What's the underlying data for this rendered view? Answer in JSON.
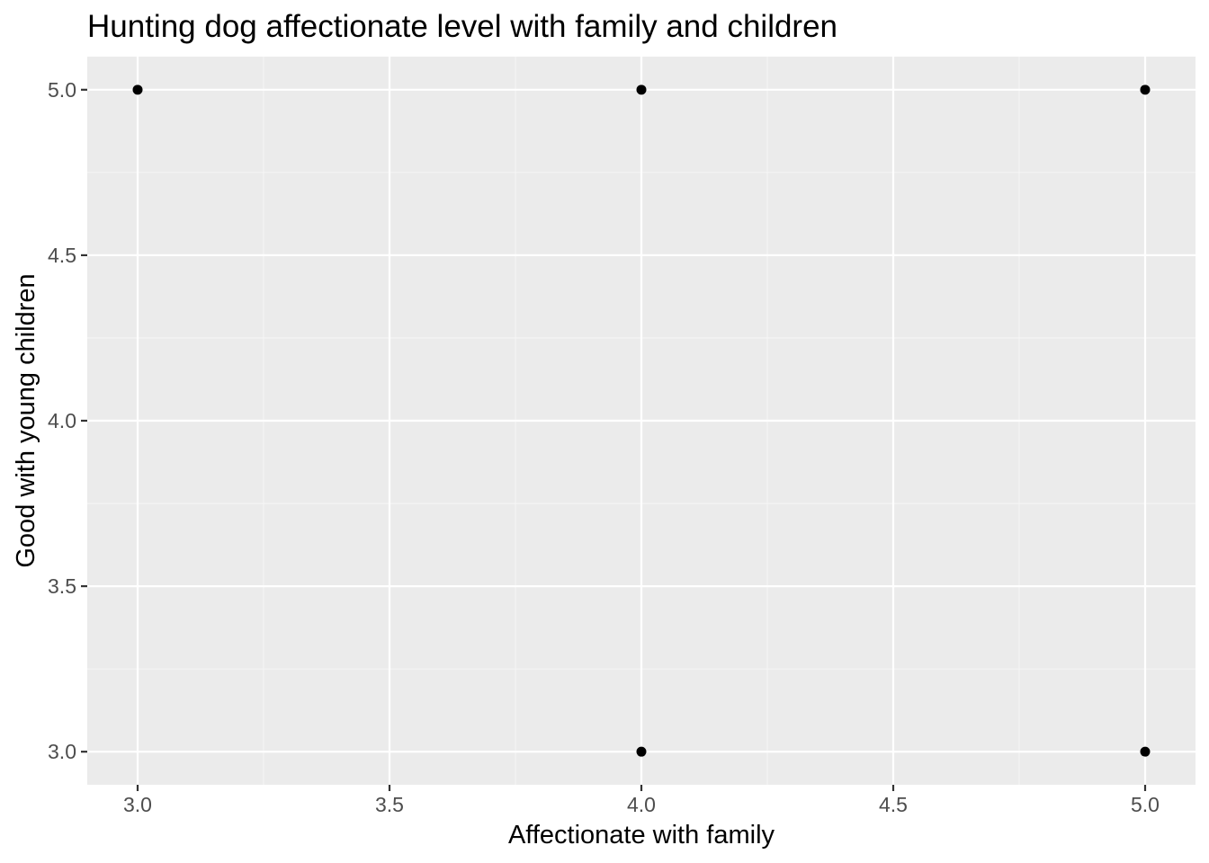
{
  "chart_data": {
    "type": "scatter",
    "title": "Hunting dog affectionate level with family and children",
    "xlabel": "Affectionate with family",
    "ylabel": "Good with young children",
    "xlim": [
      2.9,
      5.1
    ],
    "ylim": [
      2.9,
      5.1
    ],
    "x_ticks": [
      3.0,
      3.5,
      4.0,
      4.5,
      5.0
    ],
    "x_tick_labels": [
      "3.0",
      "3.5",
      "4.0",
      "4.5",
      "5.0"
    ],
    "y_ticks": [
      3.0,
      3.5,
      4.0,
      4.5,
      5.0
    ],
    "y_tick_labels": [
      "3.0",
      "3.5",
      "4.0",
      "4.5",
      "5.0"
    ],
    "grid": true,
    "points": [
      {
        "x": 3,
        "y": 5
      },
      {
        "x": 4,
        "y": 5
      },
      {
        "x": 5,
        "y": 5
      },
      {
        "x": 4,
        "y": 3
      },
      {
        "x": 5,
        "y": 3
      }
    ],
    "colors": {
      "panel_background": "#EBEBEB",
      "grid_major": "#FFFFFF",
      "grid_minor": "#F5F5F5",
      "point": "#000000",
      "tick_label": "#4D4D4D",
      "tick_mark": "#333333"
    }
  }
}
